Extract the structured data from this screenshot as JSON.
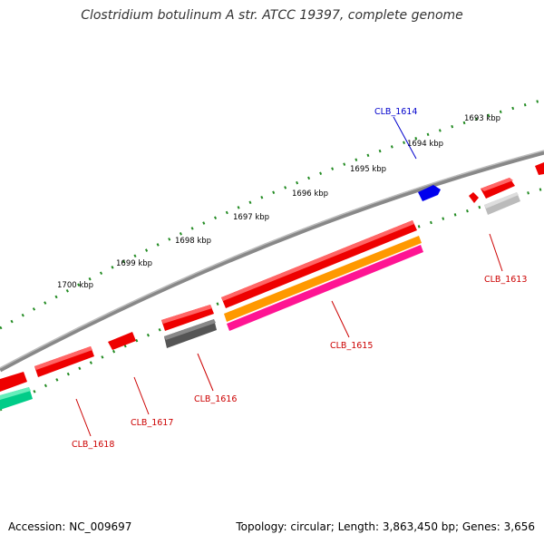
{
  "title": "Clostridium botulinum A str. ATCC 19397, complete genome",
  "footer": {
    "accession": "Accession: NC_009697",
    "stats": "Topology: circular; Length: 3,863,450 bp; Genes: 3,656"
  },
  "ruler_labels": [
    "1693 kbp",
    "1694 kbp",
    "1695 kbp",
    "1696 kbp",
    "1697 kbp",
    "1698 kbp",
    "1699 kbp",
    "1700 kbp"
  ],
  "gene_labels": [
    {
      "id": "CLB_1613",
      "text": "CLB_1613",
      "color": "#cc0000"
    },
    {
      "id": "CLB_1614",
      "text": "CLB_1614",
      "color": "#0000cc"
    },
    {
      "id": "CLB_1615",
      "text": "CLB_1615",
      "color": "#cc0000"
    },
    {
      "id": "CLB_1616",
      "text": "CLB_1616",
      "color": "#cc0000"
    },
    {
      "id": "CLB_1617",
      "text": "CLB_1617",
      "color": "#cc0000"
    },
    {
      "id": "CLB_1618",
      "text": "CLB_1618",
      "color": "#cc0000"
    }
  ],
  "colors": {
    "backbone": "#808080",
    "ruler_ticks": "#228b22",
    "gene_forward": "#ee0000",
    "gene_reverse_blue": "#0000ee",
    "orange_feature": "#ff9900",
    "pink_feature": "#ff1493",
    "dark_gray_feature": "#555555",
    "light_gray_feature": "#bbbbbb",
    "green_feature": "#00cc88"
  }
}
